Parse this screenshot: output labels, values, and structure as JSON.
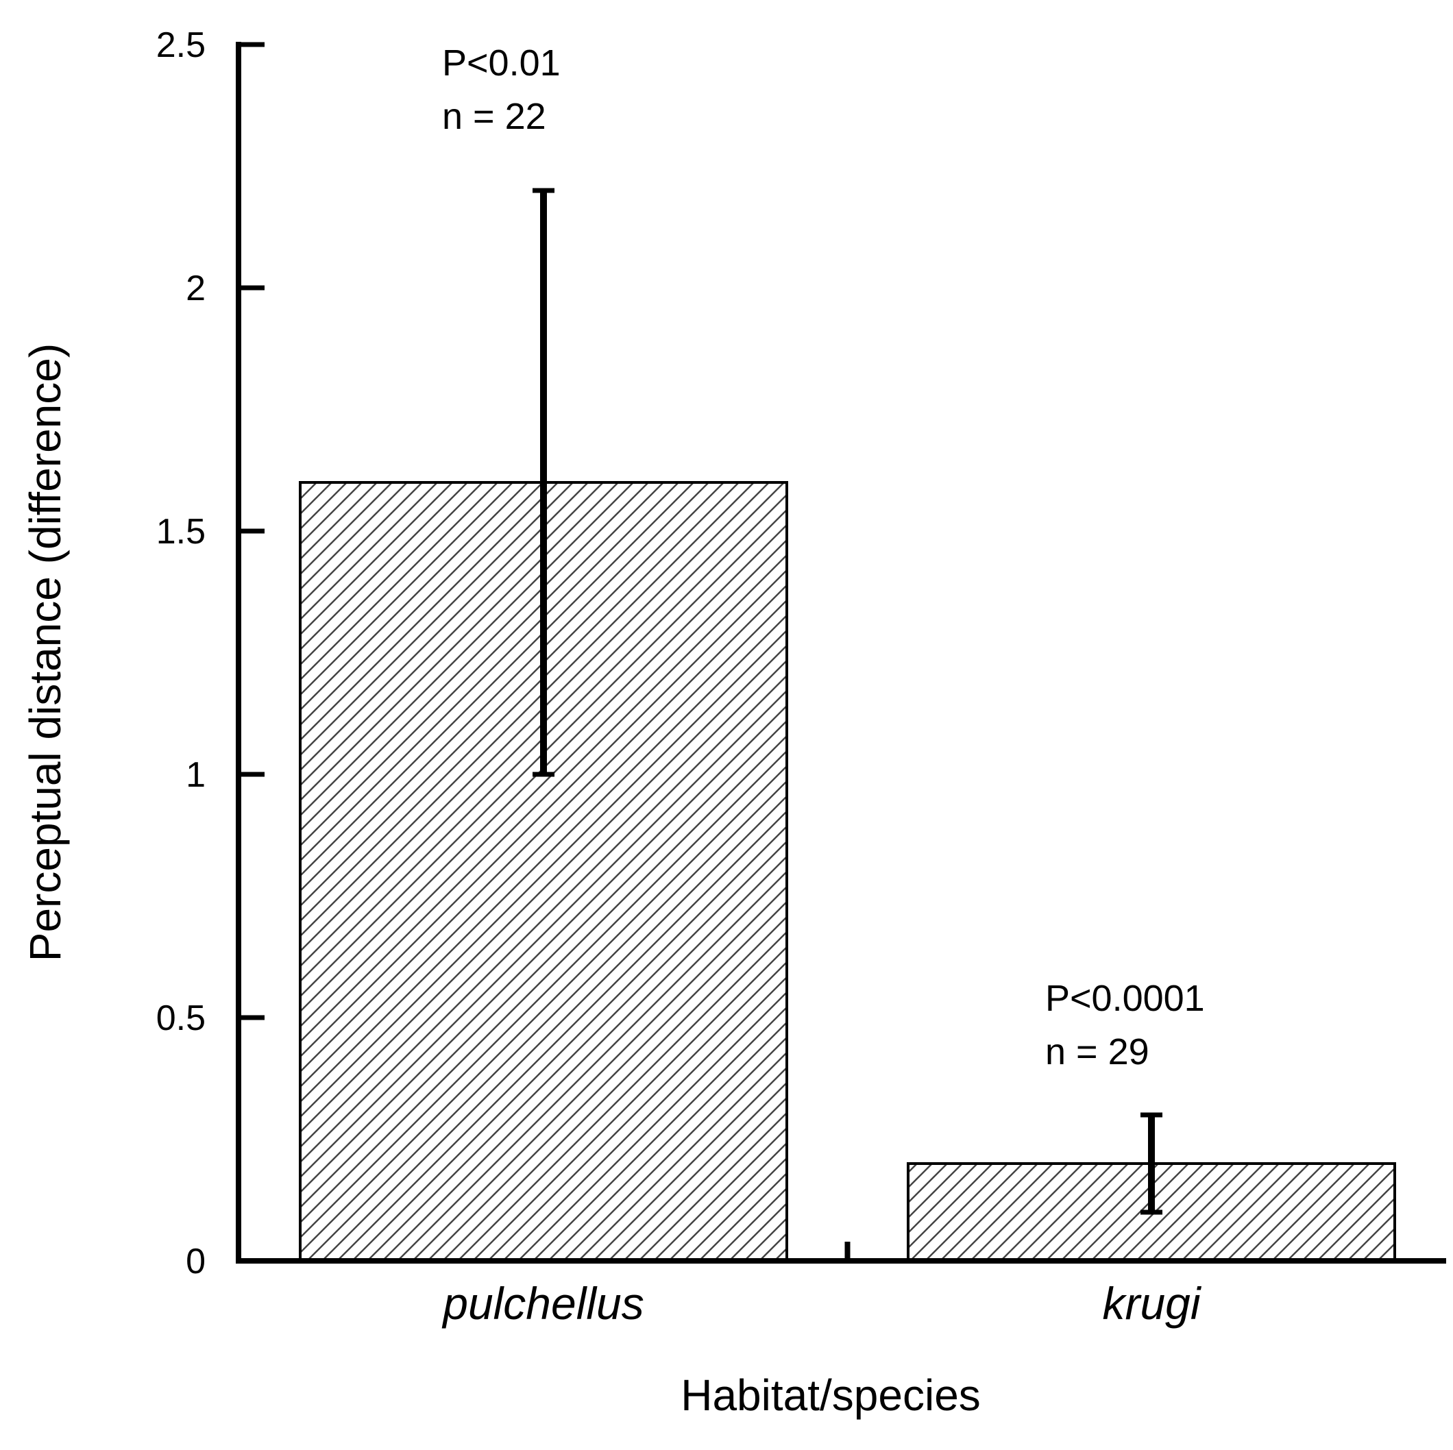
{
  "chart_data": {
    "type": "bar",
    "categories": [
      "pulchellus",
      "krugi"
    ],
    "values": [
      1.6,
      0.2
    ],
    "error_bars": [
      {
        "lower": 1.0,
        "upper": 2.2
      },
      {
        "lower": 0.1,
        "upper": 0.3
      }
    ],
    "annotations": [
      {
        "category": "pulchellus",
        "p_text": "P<0.01",
        "n_text": "n = 22"
      },
      {
        "category": "krugi",
        "p_text": "P<0.0001",
        "n_text": "n = 29"
      }
    ],
    "title": "",
    "xlabel": "Habitat/species",
    "ylabel": "Perceptual distance (difference)",
    "ylim": [
      0,
      2.5
    ],
    "yticks": [
      0,
      0.5,
      1,
      1.5,
      2,
      2.5
    ],
    "ytick_labels": [
      "0",
      "0.5",
      "1",
      "1.5",
      "2",
      "2.5"
    ],
    "grid": false,
    "bar_fill": "diagonal-hatch",
    "colors": {
      "ink": "#000000",
      "hatch": "#444444",
      "background": "#ffffff"
    }
  }
}
